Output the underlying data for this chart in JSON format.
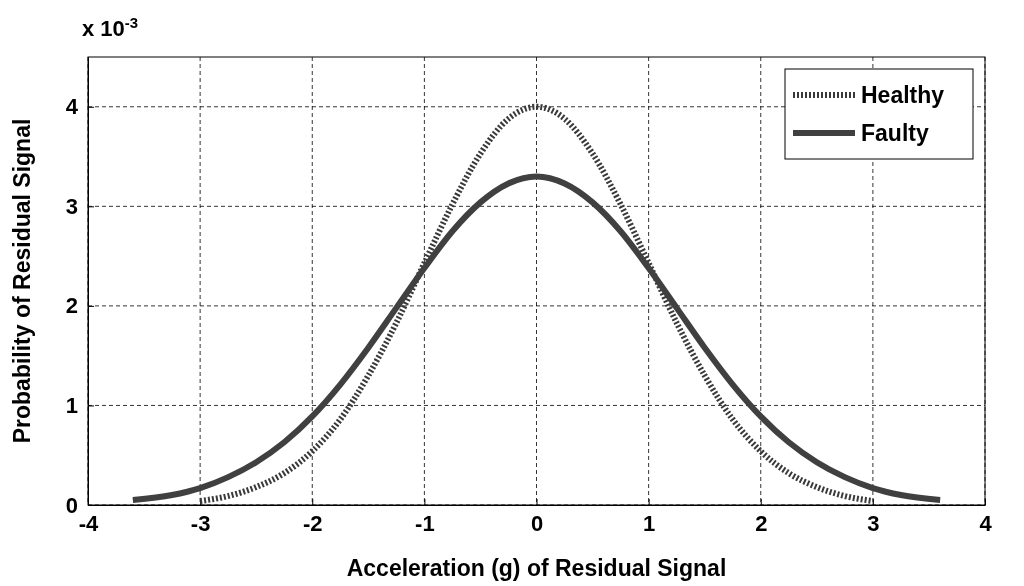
{
  "chart_data": {
    "type": "line",
    "xlabel": "Acceleration (g) of Residual Signal",
    "ylabel": "Probability of Residual Signal",
    "annotations": [
      "x 10$^{-3}$"
    ],
    "xlim": [
      -4,
      4
    ],
    "xticks": [
      -4,
      -3,
      -2,
      -1,
      0,
      1,
      2,
      3,
      4
    ],
    "ylim": [
      0,
      4.5
    ],
    "yticks": [
      0,
      1,
      2,
      3,
      4
    ],
    "grid": true,
    "legend": "top right",
    "series": [
      {
        "name": "Healthy",
        "color": "#3a3a3a",
        "line_style": "dotted",
        "x": [
          -3,
          -2.75,
          -2.5,
          -2.25,
          -2,
          -1.75,
          -1.5,
          -1.25,
          -1,
          -0.75,
          -0.5,
          -0.25,
          0,
          0.25,
          0.5,
          0.75,
          1,
          1.25,
          1.5,
          1.75,
          2,
          2.25,
          2.5,
          2.75,
          3
        ],
        "values": [
          0.04,
          0.09,
          0.18,
          0.32,
          0.54,
          0.86,
          1.3,
          1.83,
          2.43,
          3.02,
          3.53,
          3.88,
          4.0,
          3.88,
          3.53,
          3.02,
          2.43,
          1.83,
          1.3,
          0.86,
          0.54,
          0.32,
          0.18,
          0.09,
          0.04
        ]
      },
      {
        "name": "Faulty",
        "color": "#404040",
        "line_style": "solid",
        "x": [
          -3.6,
          -3.25,
          -3,
          -2.75,
          -2.5,
          -2.25,
          -2,
          -1.75,
          -1.5,
          -1.25,
          -1,
          -0.75,
          -0.5,
          -0.25,
          0,
          0.25,
          0.5,
          0.75,
          1,
          1.25,
          1.5,
          1.75,
          2,
          2.25,
          2.5,
          2.75,
          3,
          3.25,
          3.6
        ],
        "values": [
          0.05,
          0.1,
          0.17,
          0.28,
          0.43,
          0.63,
          0.89,
          1.21,
          1.58,
          1.98,
          2.38,
          2.75,
          3.04,
          3.23,
          3.3,
          3.23,
          3.04,
          2.75,
          2.38,
          1.98,
          1.58,
          1.21,
          0.89,
          0.63,
          0.43,
          0.28,
          0.17,
          0.1,
          0.05
        ]
      }
    ]
  }
}
